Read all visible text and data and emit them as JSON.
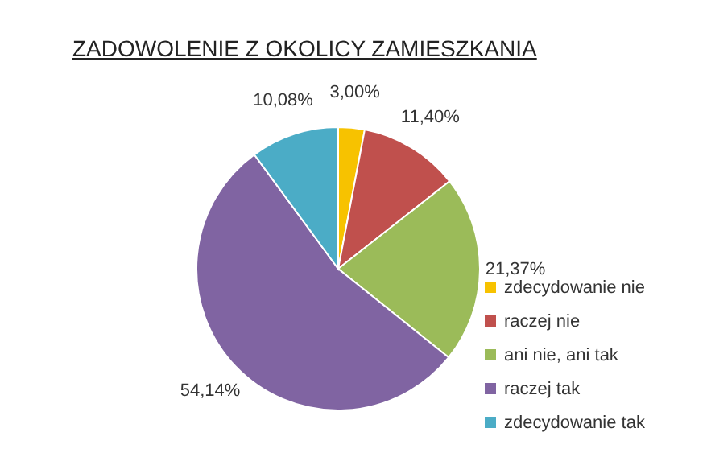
{
  "chart_data": {
    "type": "pie",
    "title": "ZADOWOLENIE Z OKOLICY ZAMIESZKANIA",
    "categories": [
      "zdecydowanie nie",
      "raczej nie",
      "ani nie, ani tak",
      "raczej tak",
      "zdecydowanie tak"
    ],
    "values": [
      3.0,
      11.4,
      21.37,
      54.14,
      10.08
    ],
    "value_labels": [
      "3,00%",
      "11,40%",
      "21,37%",
      "54,14%",
      "10,08%"
    ],
    "colors": [
      "#f7c200",
      "#c0504d",
      "#9bbb59",
      "#8064a2",
      "#4bacc6"
    ],
    "legend": "right"
  }
}
